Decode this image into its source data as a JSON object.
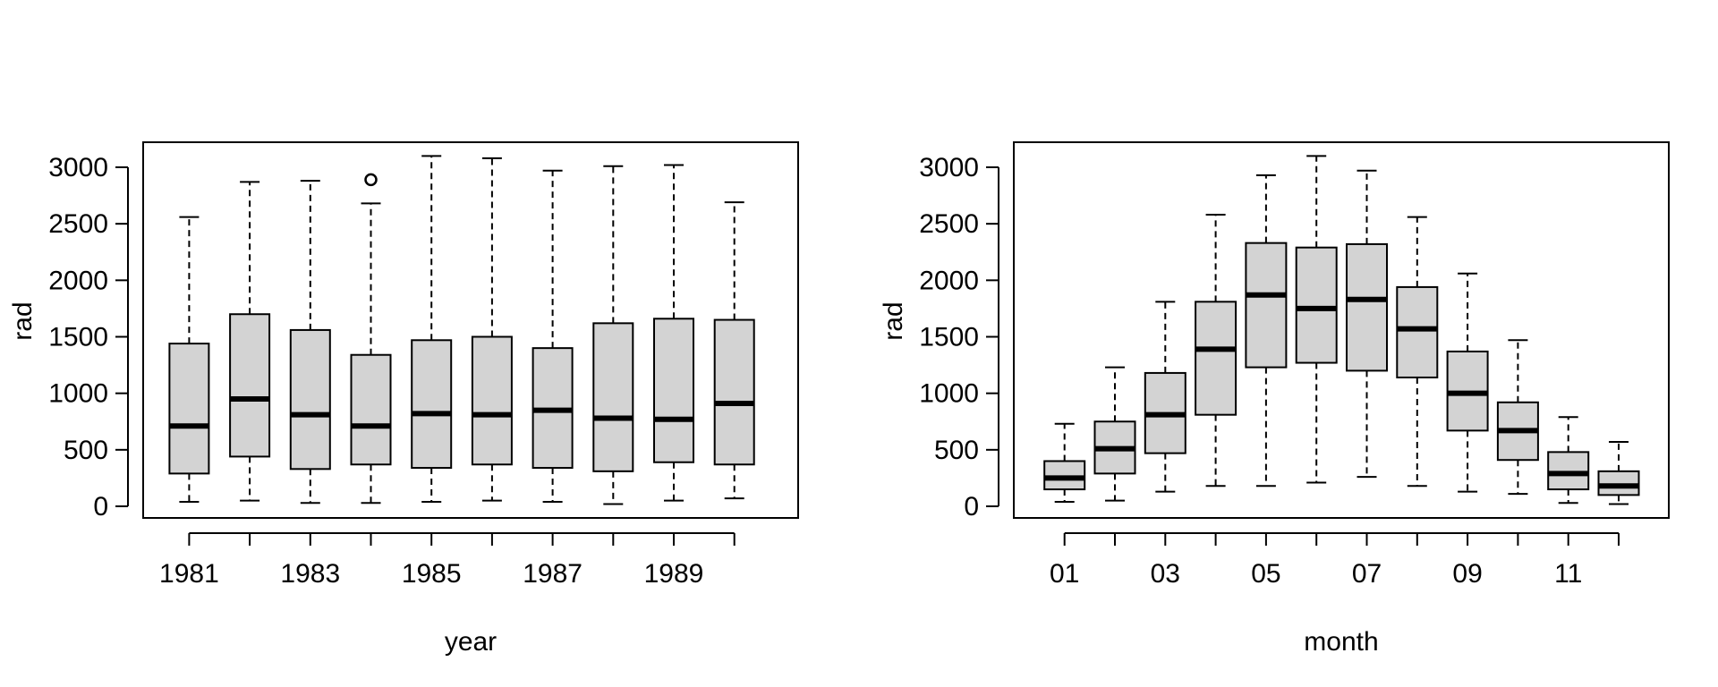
{
  "chart_data": [
    {
      "type": "boxplot",
      "xlabel": "year",
      "ylabel": "rad",
      "ylim": [
        0,
        3000
      ],
      "yticks": [
        "0",
        "500",
        "1000",
        "1500",
        "2000",
        "2500",
        "3000"
      ],
      "categories": [
        "1981",
        "1982",
        "1983",
        "1984",
        "1985",
        "1986",
        "1987",
        "1988",
        "1989",
        "1990"
      ],
      "xtick_labels": [
        "1981",
        "",
        "1983",
        "",
        "1985",
        "",
        "1987",
        "",
        "1989",
        ""
      ],
      "boxes": [
        {
          "min": 40,
          "q1": 290,
          "median": 710,
          "q3": 1440,
          "max": 2560,
          "outliers": []
        },
        {
          "min": 50,
          "q1": 440,
          "median": 950,
          "q3": 1700,
          "max": 2870,
          "outliers": []
        },
        {
          "min": 30,
          "q1": 330,
          "median": 810,
          "q3": 1560,
          "max": 2880,
          "outliers": []
        },
        {
          "min": 30,
          "q1": 370,
          "median": 710,
          "q3": 1340,
          "max": 2680,
          "outliers": [
            2890
          ]
        },
        {
          "min": 40,
          "q1": 340,
          "median": 820,
          "q3": 1470,
          "max": 3100,
          "outliers": []
        },
        {
          "min": 50,
          "q1": 370,
          "median": 810,
          "q3": 1500,
          "max": 3080,
          "outliers": []
        },
        {
          "min": 40,
          "q1": 340,
          "median": 850,
          "q3": 1400,
          "max": 2970,
          "outliers": []
        },
        {
          "min": 20,
          "q1": 310,
          "median": 780,
          "q3": 1620,
          "max": 3010,
          "outliers": []
        },
        {
          "min": 50,
          "q1": 390,
          "median": 770,
          "q3": 1660,
          "max": 3020,
          "outliers": []
        },
        {
          "min": 70,
          "q1": 370,
          "median": 910,
          "q3": 1650,
          "max": 2690,
          "outliers": []
        }
      ],
      "box_fill": "#d3d3d3"
    },
    {
      "type": "boxplot",
      "xlabel": "month",
      "ylabel": "rad",
      "ylim": [
        0,
        3000
      ],
      "yticks": [
        "0",
        "500",
        "1000",
        "1500",
        "2000",
        "2500",
        "3000"
      ],
      "categories": [
        "01",
        "02",
        "03",
        "04",
        "05",
        "06",
        "07",
        "08",
        "09",
        "10",
        "11",
        "12"
      ],
      "xtick_labels": [
        "01",
        "",
        "03",
        "",
        "05",
        "",
        "07",
        "",
        "09",
        "",
        "11",
        ""
      ],
      "boxes": [
        {
          "min": 40,
          "q1": 150,
          "median": 250,
          "q3": 400,
          "max": 730,
          "outliers": []
        },
        {
          "min": 50,
          "q1": 290,
          "median": 510,
          "q3": 750,
          "max": 1230,
          "outliers": []
        },
        {
          "min": 130,
          "q1": 470,
          "median": 810,
          "q3": 1180,
          "max": 1810,
          "outliers": []
        },
        {
          "min": 180,
          "q1": 810,
          "median": 1390,
          "q3": 1810,
          "max": 2580,
          "outliers": []
        },
        {
          "min": 180,
          "q1": 1230,
          "median": 1870,
          "q3": 2330,
          "max": 2930,
          "outliers": []
        },
        {
          "min": 210,
          "q1": 1270,
          "median": 1750,
          "q3": 2290,
          "max": 3100,
          "outliers": []
        },
        {
          "min": 260,
          "q1": 1200,
          "median": 1830,
          "q3": 2320,
          "max": 2970,
          "outliers": []
        },
        {
          "min": 180,
          "q1": 1140,
          "median": 1570,
          "q3": 1940,
          "max": 2560,
          "outliers": []
        },
        {
          "min": 130,
          "q1": 670,
          "median": 1000,
          "q3": 1370,
          "max": 2060,
          "outliers": []
        },
        {
          "min": 110,
          "q1": 410,
          "median": 670,
          "q3": 920,
          "max": 1470,
          "outliers": []
        },
        {
          "min": 30,
          "q1": 150,
          "median": 290,
          "q3": 480,
          "max": 790,
          "outliers": []
        },
        {
          "min": 20,
          "q1": 100,
          "median": 180,
          "q3": 310,
          "max": 570,
          "outliers": []
        }
      ],
      "box_fill": "#d3d3d3"
    }
  ]
}
